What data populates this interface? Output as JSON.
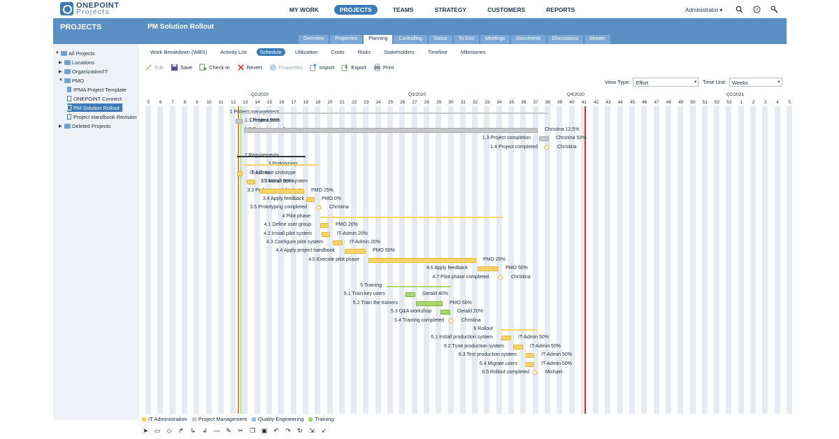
{
  "brand": {
    "line1": "ONEPOINT",
    "line2": "Projects"
  },
  "nav": {
    "items": [
      "MY WORK",
      "PROJECTS",
      "TEAMS",
      "STRATEGY",
      "CUSTOMERS",
      "REPORTS"
    ],
    "active": "PROJECTS"
  },
  "user": {
    "name": "Administrator ▾"
  },
  "left": {
    "title": "PROJECTS",
    "tree": [
      "All Projects",
      "Locations",
      "Organization/IT",
      "PMO",
      "IPMA Project Template",
      "ONEPOINT Connect",
      "PM Solution Rollout",
      "Project Handbook Revision",
      "Deleted Projects"
    ]
  },
  "project": {
    "title": "PM Solution Rollout"
  },
  "tabs": [
    "Overview",
    "Properties",
    "Planning",
    "Controlling",
    "Status",
    "To-Dos",
    "Meetings",
    "Documents",
    "Discussions",
    "Stream"
  ],
  "subtabs": [
    "Work Breakdown (WBS)",
    "Activity List",
    "Schedule",
    "Utilization",
    "Costs",
    "Risks",
    "Stakeholders",
    "Timeline",
    "Milestones"
  ],
  "toolbar": {
    "edit": "Edit",
    "save": "Save",
    "checkin": "Check-in",
    "revert": "Revert",
    "properties": "Properties",
    "import": "Import",
    "export": "Export",
    "print": "Print"
  },
  "view": {
    "type_label": "View Type:",
    "type_value": "Effort",
    "unit_label": "Time Unit:",
    "unit_value": "Weeks"
  },
  "timeline": {
    "quarters": [
      "Q2/2020",
      "Q3/2020",
      "Q4/2020",
      "Q1/2021"
    ],
    "weeks": [
      "5",
      "6",
      "7",
      "8",
      "9",
      "10",
      "11",
      "12",
      "13",
      "14",
      "15",
      "16",
      "17",
      "18",
      "19",
      "20",
      "21",
      "22",
      "23",
      "24",
      "25",
      "26",
      "27",
      "28",
      "29",
      "30",
      "31",
      "32",
      "33",
      "34",
      "35",
      "36",
      "37",
      "38",
      "39",
      "40",
      "41",
      "42",
      "43",
      "44",
      "45",
      "46",
      "47",
      "48",
      "49",
      "50",
      "51",
      "52",
      "53",
      "1",
      "2",
      "3",
      "4",
      "5"
    ]
  },
  "tasks": [
    {
      "name": "1 Project management",
      "res": ""
    },
    {
      "name": "1.1 Project start",
      "res": "Christina 50%"
    },
    {
      "name": "1.2 Project controlling",
      "res": "Christina 12,5%"
    },
    {
      "name": "1.3 Project completion",
      "res": "Christina 50%"
    },
    {
      "name": "1.4 Project completed",
      "res": "Christina"
    },
    {
      "name": "2 Requirements",
      "res": ""
    },
    {
      "name": "3 Prototyping",
      "res": ""
    },
    {
      "name": "3.1 Create prototype",
      "res": "IT-Admin"
    },
    {
      "name": "3.2 Install test system",
      "res": "IT-Admin 50%"
    },
    {
      "name": "3.3 Perform usability tests",
      "res": "PMO 25%"
    },
    {
      "name": "3.4 Apply feedback",
      "res": "PMO 0%"
    },
    {
      "name": "3.5 Prototyping completed",
      "res": "Christina"
    },
    {
      "name": "4 Pilot phase",
      "res": ""
    },
    {
      "name": "4.1 Define user group",
      "res": "PMO 20%"
    },
    {
      "name": "4.2 Install pilot system",
      "res": "IT-Admin 20%"
    },
    {
      "name": "4.3 Configure pilot system",
      "res": "IT-Admin 20%"
    },
    {
      "name": "4.4 Apply project handbook",
      "res": "PMO 50%"
    },
    {
      "name": "4.5 Execute pilot phase",
      "res": "PMO 25%"
    },
    {
      "name": "4.6 Apply feedback",
      "res": "PMO 50%"
    },
    {
      "name": "4.7 Pilot phase completed",
      "res": "Christina"
    },
    {
      "name": "5 Training",
      "res": ""
    },
    {
      "name": "5.1 Train key users",
      "res": "Gerald 40%"
    },
    {
      "name": "5.2 Train the trainers",
      "res": "PMO 50%"
    },
    {
      "name": "5.3 Q&A workshop",
      "res": "Gerald 20%"
    },
    {
      "name": "5.4 Training completed",
      "res": "Christina"
    },
    {
      "name": "6 Rollout",
      "res": ""
    },
    {
      "name": "6.1 Install production system",
      "res": "IT-Admin 50%"
    },
    {
      "name": "6.2 Tune production system",
      "res": "IT-Admin 50%"
    },
    {
      "name": "6.3 Test production system",
      "res": "IT-Admin 50%"
    },
    {
      "name": "6.4 Migrate users",
      "res": "IT-Admin 50%"
    },
    {
      "name": "6.5 Rollout completed",
      "res": "Michael"
    }
  ],
  "legend": [
    {
      "label": "IT Administration",
      "color": "#f7d266"
    },
    {
      "label": "Project Management",
      "color": "#c7c7c7"
    },
    {
      "label": "Quality Engineering",
      "color": "#8fc3ea"
    },
    {
      "label": "Training",
      "color": "#a9d86b"
    }
  ]
}
